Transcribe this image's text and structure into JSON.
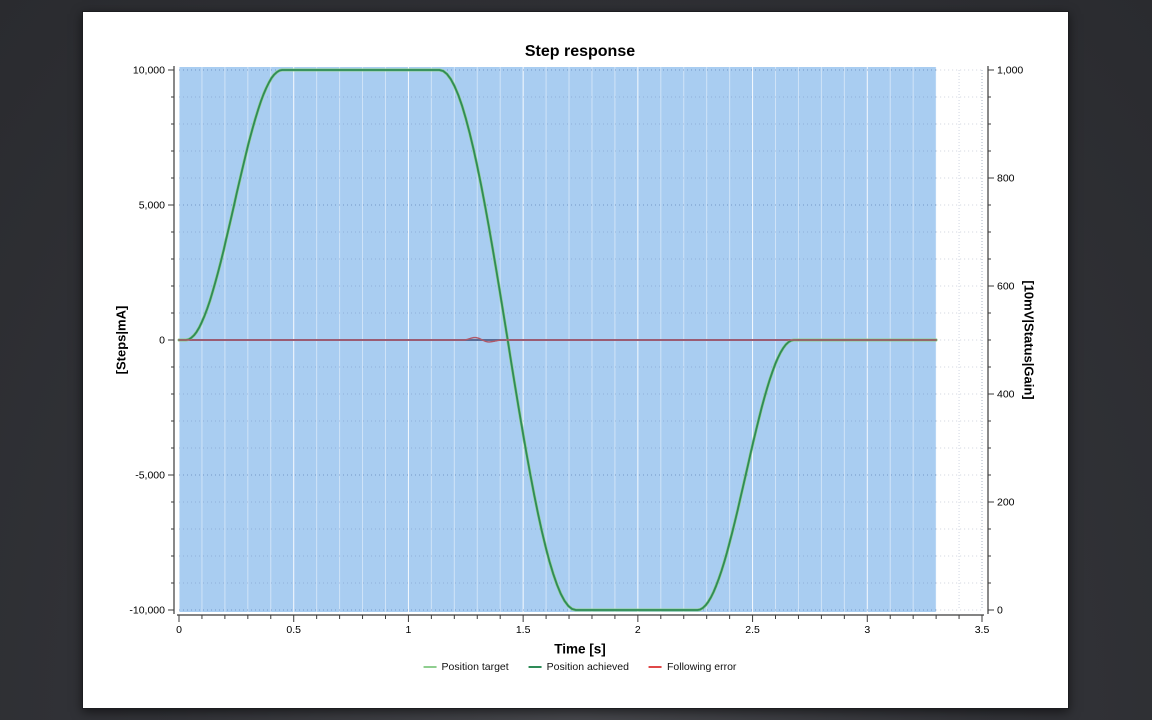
{
  "chart_data": {
    "type": "line",
    "title": "Step response",
    "xlabel": "Time [s]",
    "ylabel_left": "[Steps|mA]",
    "ylabel_right": "[10mV|Status|Gain]",
    "x_range": [
      0,
      3.5
    ],
    "y_left_range": [
      -10000,
      10000
    ],
    "y_right_range": [
      0,
      1000
    ],
    "x_minor_step": 0.1,
    "y_left_minor_step": 1000,
    "y_right_minor_step": 50,
    "x_major_ticks": [
      {
        "v": 0,
        "label": "0"
      },
      {
        "v": 0.5,
        "label": "0.5"
      },
      {
        "v": 1,
        "label": "1"
      },
      {
        "v": 1.5,
        "label": "1.5"
      },
      {
        "v": 2,
        "label": "2"
      },
      {
        "v": 2.5,
        "label": "2.5"
      },
      {
        "v": 3,
        "label": "3"
      },
      {
        "v": 3.5,
        "label": "3.5"
      }
    ],
    "y_left_major_ticks": [
      {
        "v": 10000,
        "label": "10,000"
      },
      {
        "v": 5000,
        "label": "5,000"
      },
      {
        "v": 0,
        "label": "0"
      },
      {
        "v": -5000,
        "label": "-5,000"
      },
      {
        "v": -10000,
        "label": "-10,000"
      }
    ],
    "y_right_major_ticks": [
      {
        "v": 1000,
        "label": "1,000"
      },
      {
        "v": 800,
        "label": "800"
      },
      {
        "v": 600,
        "label": "600"
      },
      {
        "v": 400,
        "label": "400"
      },
      {
        "v": 200,
        "label": "200"
      },
      {
        "v": 0,
        "label": "0"
      }
    ],
    "data_region": {
      "t_start": 0,
      "t_end": 3.3,
      "fill": "#a9cdf1"
    },
    "zero_line_color": "#5c6b94",
    "series": [
      {
        "name": "Position target",
        "color": "#8fce8f",
        "width": 3,
        "points": [
          [
            0,
            0
          ],
          [
            0.03,
            0
          ],
          [
            0.45,
            10000,
            1
          ],
          [
            1.135,
            10000
          ],
          [
            1.73,
            -10000,
            1
          ],
          [
            2.26,
            -10000
          ],
          [
            2.68,
            0,
            1
          ],
          [
            3.3,
            0
          ]
        ]
      },
      {
        "name": "Position achieved",
        "color": "#2e8b57",
        "width": 1.8,
        "points": [
          [
            0,
            0
          ],
          [
            0.03,
            0
          ],
          [
            0.45,
            10000,
            1
          ],
          [
            1.135,
            10000
          ],
          [
            1.73,
            -10000,
            1
          ],
          [
            2.26,
            -10000
          ],
          [
            2.68,
            0,
            1
          ],
          [
            3.3,
            0
          ]
        ]
      },
      {
        "name": "Following error",
        "color": "#b05868",
        "width": 1.4,
        "points": [
          [
            0,
            0
          ],
          [
            1.24,
            0
          ],
          [
            1.29,
            90,
            1
          ],
          [
            1.35,
            -70,
            1
          ],
          [
            1.41,
            0,
            1
          ],
          [
            3.3,
            0
          ]
        ]
      }
    ],
    "legend": [
      {
        "label": "Position target",
        "color": "#8fce8f"
      },
      {
        "label": "Position achieved",
        "color": "#2e8b57"
      },
      {
        "label": "Following error",
        "color": "#e04848"
      }
    ]
  }
}
